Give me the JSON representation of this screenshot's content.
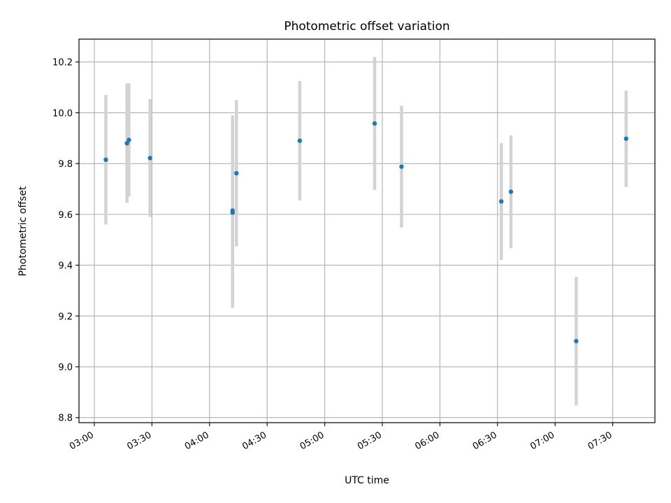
{
  "chart_data": {
    "type": "scatter",
    "title": "Photometric offset variation",
    "xlabel": "UTC time",
    "ylabel": "Photometric offset",
    "x_ticks": [
      "03:00",
      "03:30",
      "04:00",
      "04:30",
      "05:00",
      "05:30",
      "06:00",
      "06:30",
      "07:00",
      "07:30"
    ],
    "y_ticks": [
      "8.8",
      "9.0",
      "9.2",
      "9.4",
      "9.6",
      "9.8",
      "10.0",
      "10.2"
    ],
    "xlim": [
      "02:52",
      "07:52"
    ],
    "ylim": [
      8.78,
      10.29
    ],
    "grid": true,
    "colors": {
      "point": "#1f77b4",
      "errorbar": "#d3d3d3",
      "grid": "#b0b0b0"
    },
    "points": [
      {
        "x": "03:06",
        "y": 9.815,
        "err": 0.255
      },
      {
        "x": "03:17",
        "y": 9.88,
        "err": 0.235
      },
      {
        "x": "03:18",
        "y": 9.893,
        "err": 0.223
      },
      {
        "x": "03:29",
        "y": 9.822,
        "err": 0.232
      },
      {
        "x": "04:12",
        "y": 9.615,
        "err": 0.375
      },
      {
        "x": "04:12",
        "y": 9.607,
        "err": 0.375
      },
      {
        "x": "04:14",
        "y": 9.762,
        "err": 0.288
      },
      {
        "x": "04:47",
        "y": 9.89,
        "err": 0.235
      },
      {
        "x": "05:26",
        "y": 9.958,
        "err": 0.262
      },
      {
        "x": "05:40",
        "y": 9.788,
        "err": 0.24
      },
      {
        "x": "06:32",
        "y": 9.651,
        "err": 0.23
      },
      {
        "x": "06:37",
        "y": 9.689,
        "err": 0.222
      },
      {
        "x": "07:11",
        "y": 9.101,
        "err": 0.253
      },
      {
        "x": "07:37",
        "y": 9.898,
        "err": 0.19
      }
    ]
  }
}
